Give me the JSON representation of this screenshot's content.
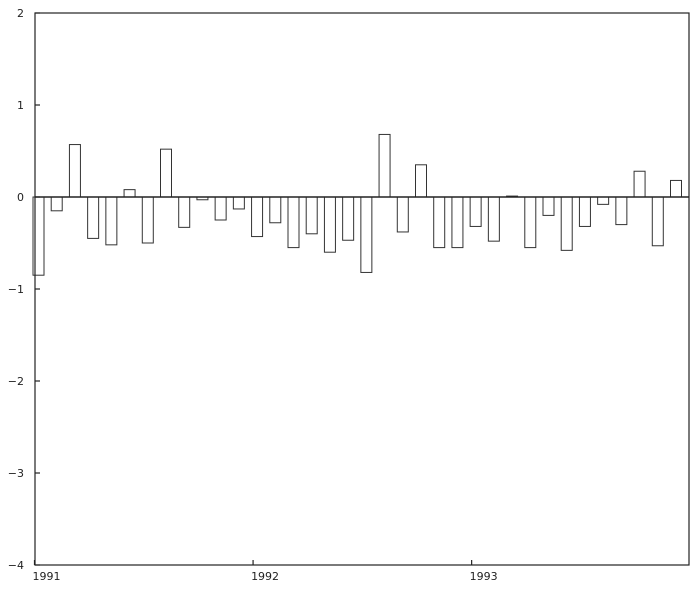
{
  "chart_data": {
    "type": "bar",
    "title": "",
    "xlabel": "",
    "ylabel": "",
    "ylim": [
      -4,
      2
    ],
    "yticks": [
      2,
      1,
      0,
      -1,
      -2,
      -3,
      -4
    ],
    "ytick_labels": [
      "2",
      "1",
      "0",
      "−1",
      "−2",
      "−3",
      "−4"
    ],
    "x_year_labels": [
      {
        "label": "1991",
        "index": 0
      },
      {
        "label": "1992",
        "index": 12
      },
      {
        "label": "1993",
        "index": 24
      }
    ],
    "categories_count": 36,
    "values": [
      -0.85,
      -0.15,
      0.57,
      -0.45,
      -0.52,
      0.08,
      -0.5,
      0.52,
      -0.33,
      -0.03,
      -0.25,
      -0.13,
      -0.43,
      -0.28,
      -0.55,
      -0.4,
      -0.6,
      -0.47,
      -0.82,
      0.68,
      -0.38,
      0.35,
      -0.55,
      -0.55,
      -0.32,
      -0.48,
      0.01,
      -0.55,
      -0.2,
      -0.58,
      -0.32,
      -0.08,
      -0.3,
      0.28,
      -0.53,
      0.18
    ],
    "bar_fill": "#ffffff",
    "bar_stroke": "#333333",
    "axis_color": "#222222",
    "grid": false,
    "legend": "none"
  }
}
